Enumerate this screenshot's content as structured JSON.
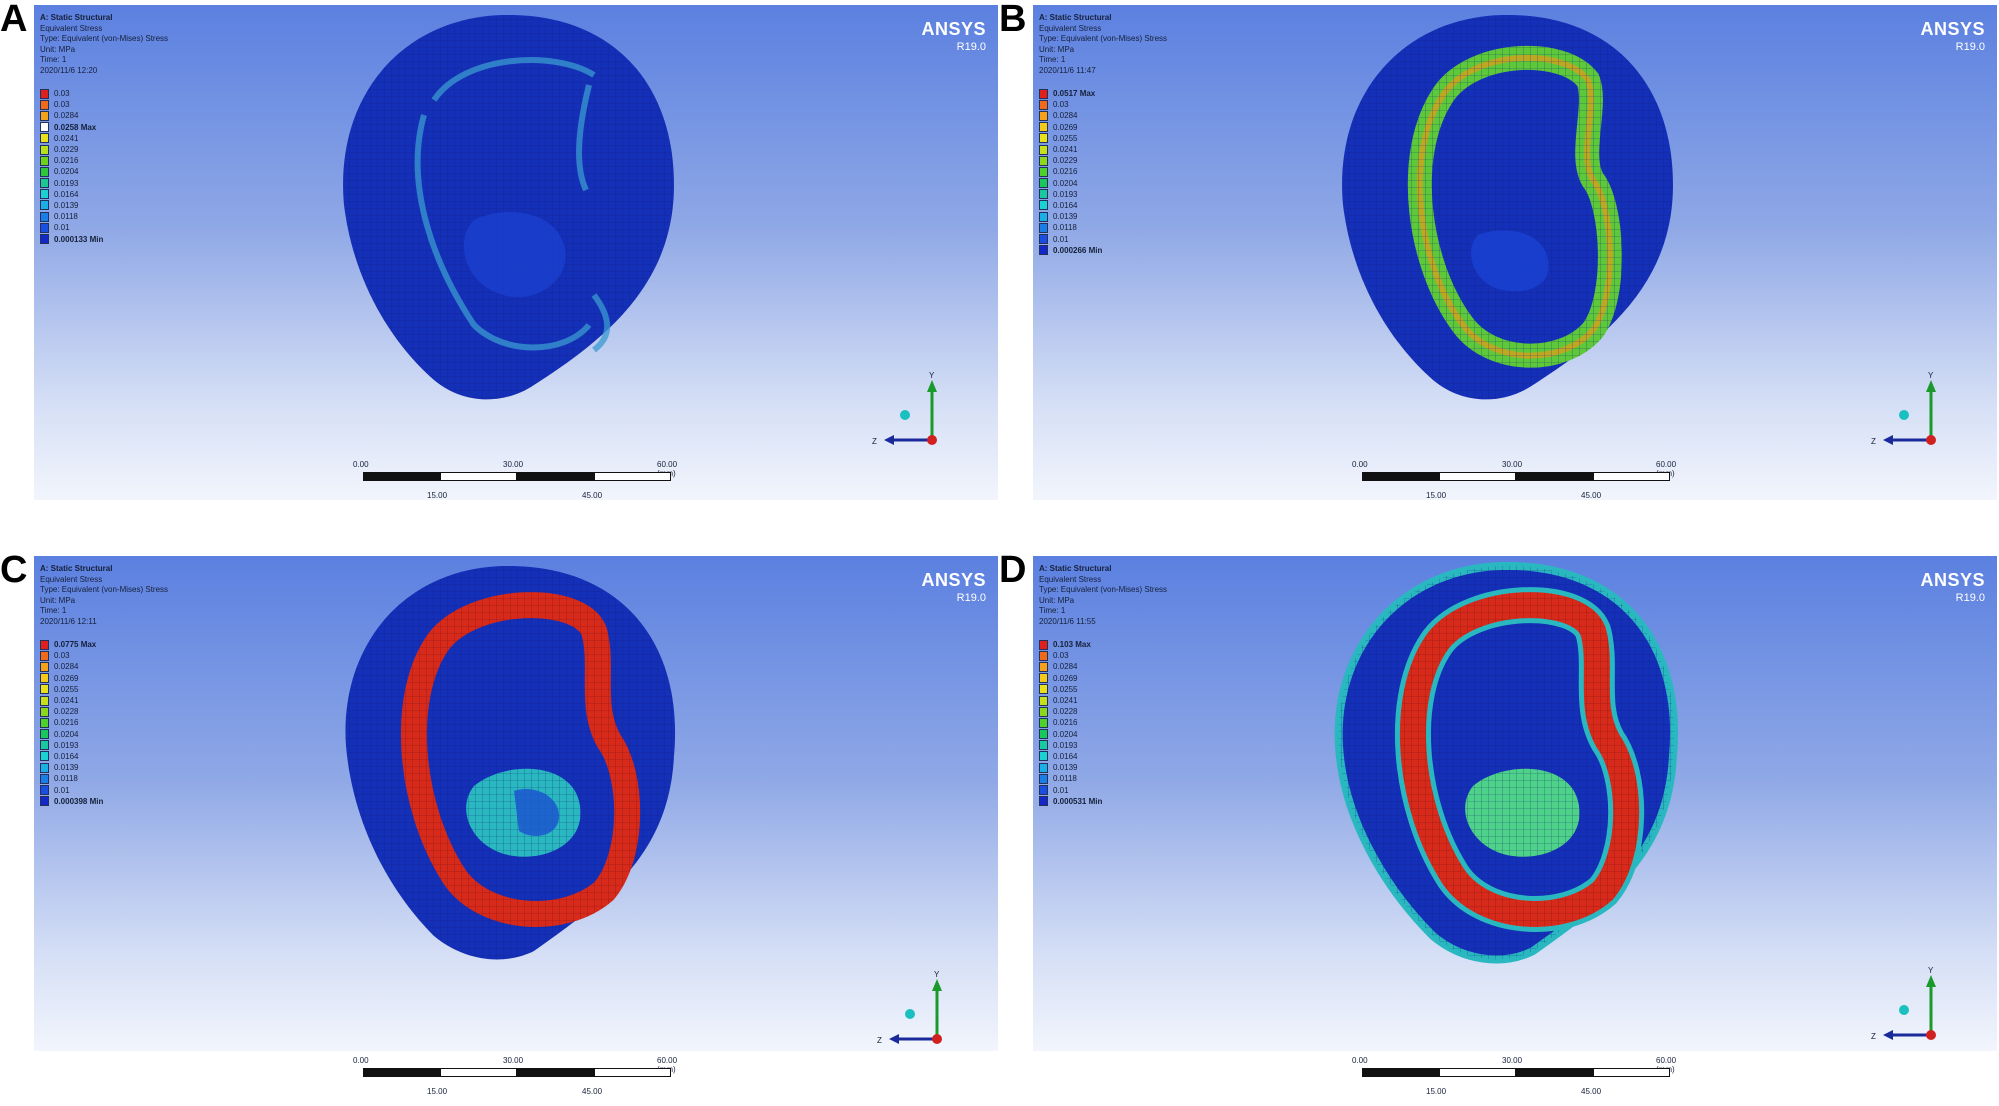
{
  "panels": [
    {
      "label": "A",
      "header": {
        "title": "A: Static Structural",
        "line2": "Equivalent Stress",
        "line3": "Type: Equivalent (von-Mises) Stress",
        "line4": "Unit: MPa",
        "line5": "Time: 1",
        "line6": "2020/11/6 12:20"
      },
      "legend": [
        {
          "text": "0.03",
          "color": "#e0201a",
          "bold": false
        },
        {
          "text": "0.03",
          "color": "#f06a1a",
          "bold": false
        },
        {
          "text": "0.0284",
          "color": "#f5a21a",
          "bold": false
        },
        {
          "text": "0.0258 Max",
          "color": "#ffffff",
          "bold": true
        },
        {
          "text": "0.0241",
          "color": "#e8e01a",
          "bold": false
        },
        {
          "text": "0.0229",
          "color": "#b8e01a",
          "bold": false
        },
        {
          "text": "0.0216",
          "color": "#6ed21a",
          "bold": false
        },
        {
          "text": "0.0204",
          "color": "#2ec83a",
          "bold": false
        },
        {
          "text": "0.0193",
          "color": "#1ac890",
          "bold": false
        },
        {
          "text": "0.0164",
          "color": "#1ad2d2",
          "bold": false
        },
        {
          "text": "0.0139",
          "color": "#1ab0e6",
          "bold": false
        },
        {
          "text": "0.0118",
          "color": "#1a7ee6",
          "bold": false
        },
        {
          "text": "0.01",
          "color": "#1a4ee0",
          "bold": false
        },
        {
          "text": "0.000133 Min",
          "color": "#1428c8",
          "bold": true
        }
      ],
      "brand": {
        "name": "ANSYS",
        "version": "R19.0"
      },
      "scale": {
        "t0": "0.00",
        "t1": "30.00",
        "t2": "60.00 (mm)",
        "b1": "15.00",
        "b2": "45.00"
      },
      "axes": {
        "y": "Y",
        "z": "Z"
      }
    },
    {
      "label": "B",
      "header": {
        "title": "A: Static Structural",
        "line2": "Equivalent Stress",
        "line3": "Type: Equivalent (von-Mises) Stress",
        "line4": "Unit: MPa",
        "line5": "Time: 1",
        "line6": "2020/11/6 11:47"
      },
      "legend": [
        {
          "text": "0.0517 Max",
          "color": "#e0201a",
          "bold": true
        },
        {
          "text": "0.03",
          "color": "#f06a1a",
          "bold": false
        },
        {
          "text": "0.0284",
          "color": "#f5a21a",
          "bold": false
        },
        {
          "text": "0.0269",
          "color": "#f5c81a",
          "bold": false
        },
        {
          "text": "0.0255",
          "color": "#e8e01a",
          "bold": false
        },
        {
          "text": "0.0241",
          "color": "#c8e01a",
          "bold": false
        },
        {
          "text": "0.0229",
          "color": "#8ed81a",
          "bold": false
        },
        {
          "text": "0.0216",
          "color": "#4ed22a",
          "bold": false
        },
        {
          "text": "0.0204",
          "color": "#1ac85a",
          "bold": false
        },
        {
          "text": "0.0193",
          "color": "#1ac8a0",
          "bold": false
        },
        {
          "text": "0.0164",
          "color": "#1ad2d2",
          "bold": false
        },
        {
          "text": "0.0139",
          "color": "#1ab0e6",
          "bold": false
        },
        {
          "text": "0.0118",
          "color": "#1a7ee6",
          "bold": false
        },
        {
          "text": "0.01",
          "color": "#1a4ee0",
          "bold": false
        },
        {
          "text": "0.000266 Min",
          "color": "#1428c8",
          "bold": true
        }
      ],
      "brand": {
        "name": "ANSYS",
        "version": "R19.0"
      },
      "scale": {
        "t0": "0.00",
        "t1": "30.00",
        "t2": "60.00 (mm)",
        "b1": "15.00",
        "b2": "45.00"
      },
      "axes": {
        "y": "Y",
        "z": "Z"
      }
    },
    {
      "label": "C",
      "header": {
        "title": "A: Static Structural",
        "line2": "Equivalent Stress",
        "line3": "Type: Equivalent (von-Mises) Stress",
        "line4": "Unit: MPa",
        "line5": "Time: 1",
        "line6": "2020/11/6 12:11"
      },
      "legend": [
        {
          "text": "0.0775 Max",
          "color": "#e0201a",
          "bold": true
        },
        {
          "text": "0.03",
          "color": "#f06a1a",
          "bold": false
        },
        {
          "text": "0.0284",
          "color": "#f5a21a",
          "bold": false
        },
        {
          "text": "0.0269",
          "color": "#f5c81a",
          "bold": false
        },
        {
          "text": "0.0255",
          "color": "#e8e01a",
          "bold": false
        },
        {
          "text": "0.0241",
          "color": "#c8e01a",
          "bold": false
        },
        {
          "text": "0.0228",
          "color": "#8ed81a",
          "bold": false
        },
        {
          "text": "0.0216",
          "color": "#4ed22a",
          "bold": false
        },
        {
          "text": "0.0204",
          "color": "#1ac85a",
          "bold": false
        },
        {
          "text": "0.0193",
          "color": "#1ac8a0",
          "bold": false
        },
        {
          "text": "0.0164",
          "color": "#1ad2d2",
          "bold": false
        },
        {
          "text": "0.0139",
          "color": "#1ab0e6",
          "bold": false
        },
        {
          "text": "0.0118",
          "color": "#1a7ee6",
          "bold": false
        },
        {
          "text": "0.01",
          "color": "#1a4ee0",
          "bold": false
        },
        {
          "text": "0.000398 Min",
          "color": "#1428c8",
          "bold": true
        }
      ],
      "brand": {
        "name": "ANSYS",
        "version": "R19.0"
      },
      "scale": {
        "t0": "0.00",
        "t1": "30.00",
        "t2": "60.00 (mm)",
        "b1": "15.00",
        "b2": "45.00"
      },
      "axes": {
        "y": "Y",
        "z": "Z"
      }
    },
    {
      "label": "D",
      "header": {
        "title": "A: Static Structural",
        "line2": "Equivalent Stress",
        "line3": "Type: Equivalent (von-Mises) Stress",
        "line4": "Unit: MPa",
        "line5": "Time: 1",
        "line6": "2020/11/6 11:55"
      },
      "legend": [
        {
          "text": "0.103 Max",
          "color": "#e0201a",
          "bold": true
        },
        {
          "text": "0.03",
          "color": "#f06a1a",
          "bold": false
        },
        {
          "text": "0.0284",
          "color": "#f5a21a",
          "bold": false
        },
        {
          "text": "0.0269",
          "color": "#f5c81a",
          "bold": false
        },
        {
          "text": "0.0255",
          "color": "#e8e01a",
          "bold": false
        },
        {
          "text": "0.0241",
          "color": "#c8e01a",
          "bold": false
        },
        {
          "text": "0.0228",
          "color": "#8ed81a",
          "bold": false
        },
        {
          "text": "0.0216",
          "color": "#4ed22a",
          "bold": false
        },
        {
          "text": "0.0204",
          "color": "#1ac85a",
          "bold": false
        },
        {
          "text": "0.0193",
          "color": "#1ac8a0",
          "bold": false
        },
        {
          "text": "0.0164",
          "color": "#1ad2d2",
          "bold": false
        },
        {
          "text": "0.0139",
          "color": "#1ab0e6",
          "bold": false
        },
        {
          "text": "0.0118",
          "color": "#1a7ee6",
          "bold": false
        },
        {
          "text": "0.01",
          "color": "#1a4ee0",
          "bold": false
        },
        {
          "text": "0.000531 Min",
          "color": "#1428c8",
          "bold": true
        }
      ],
      "brand": {
        "name": "ANSYS",
        "version": "R19.0"
      },
      "scale": {
        "t0": "0.00",
        "t1": "30.00",
        "t2": "60.00 (mm)",
        "b1": "15.00",
        "b2": "45.00"
      },
      "axes": {
        "y": "Y",
        "z": "Z"
      }
    }
  ]
}
